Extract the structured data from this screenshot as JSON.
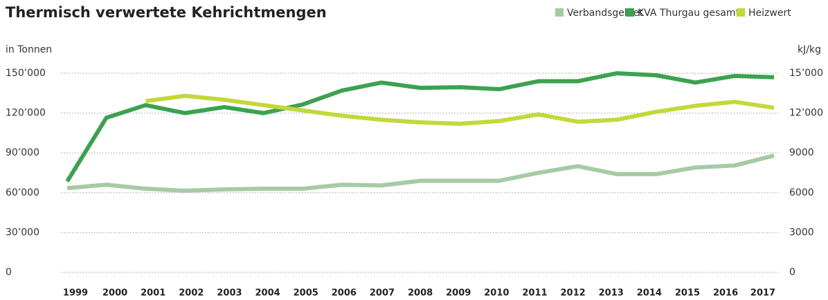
{
  "chart_data": {
    "type": "line",
    "title": "Thermisch verwertete Kehrichtmengen",
    "y_label": "in Tonnen",
    "y2_label": "kJ/kg",
    "categories": [
      "1999",
      "2000",
      "2001",
      "2002",
      "2003",
      "2004",
      "2005",
      "2006",
      "2007",
      "2008",
      "2009",
      "2010",
      "2011",
      "2012",
      "2013",
      "2014",
      "2015",
      "2016",
      "2017"
    ],
    "series": [
      {
        "name": "Verbandsgebiet",
        "color": "#a6caa6",
        "values": [
          63500,
          66000,
          63000,
          61500,
          62500,
          63000,
          63000,
          66000,
          65500,
          69000,
          69000,
          69000,
          75000,
          80000,
          74000,
          74000,
          79000,
          80500,
          88000
        ]
      },
      {
        "name": "KVA Thurgau gesamt",
        "color": "#3ba24f",
        "values": [
          68500,
          116500,
          126000,
          120000,
          124500,
          120000,
          126500,
          137000,
          143000,
          139000,
          139500,
          138000,
          144000,
          144000,
          150000,
          148500,
          143000,
          148000,
          147000
        ]
      },
      {
        "name": "Heizwert",
        "color": "#c3d83a",
        "axis": "y2",
        "values": [
          null,
          null,
          12900,
          13300,
          13000,
          12600,
          12200,
          11800,
          11500,
          11300,
          11200,
          11400,
          11900,
          11350,
          11500,
          12100,
          12550,
          12850,
          12400
        ]
      }
    ],
    "ylim": [
      0,
      150000
    ],
    "yticks": [
      0,
      {
        "value": 30000,
        "label": "30’000"
      },
      {
        "value": 60000,
        "label": "60’000"
      },
      {
        "value": 90000,
        "label": "90’000"
      },
      {
        "value": 120000,
        "label": "120’000"
      },
      {
        "value": 150000,
        "label": "150’000"
      }
    ],
    "y2lim": [
      0,
      15000
    ],
    "y2ticks": [
      0,
      3000,
      6000,
      9000,
      {
        "value": 12000,
        "label": "12’000"
      },
      {
        "value": 15000,
        "label": "15’000"
      }
    ],
    "grid": true,
    "legend": "top-right"
  }
}
